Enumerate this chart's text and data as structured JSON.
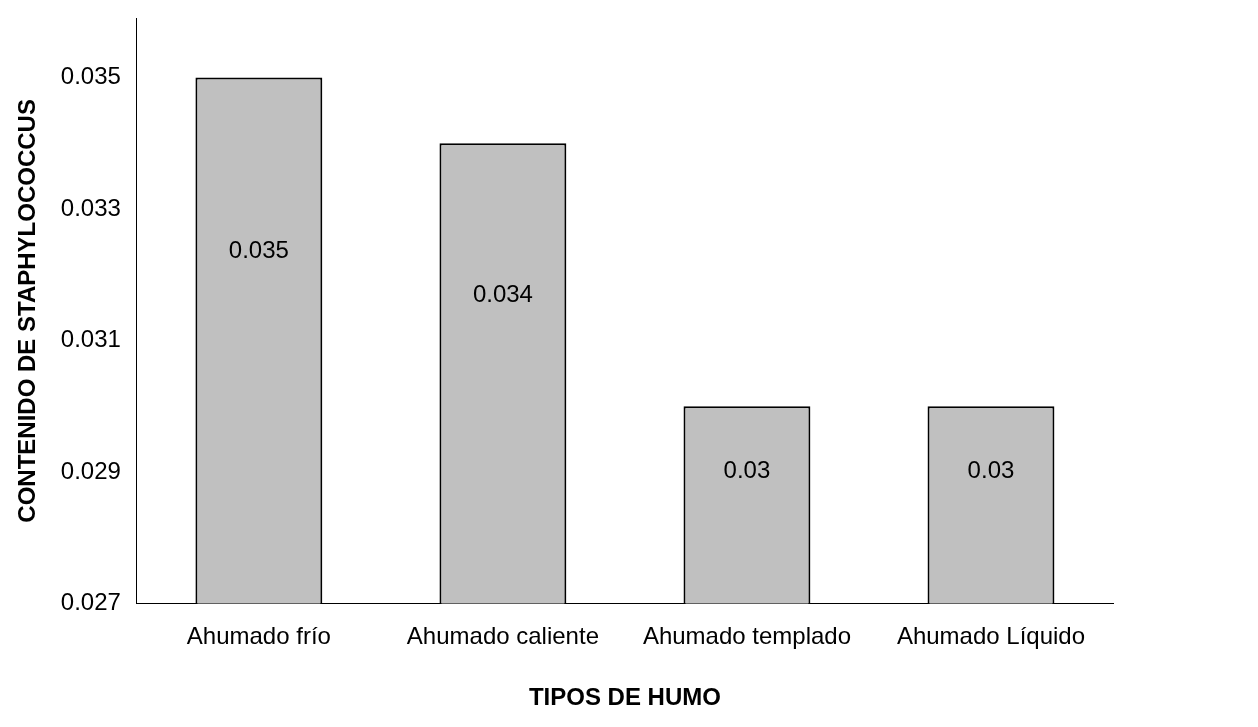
{
  "chart_data": {
    "type": "bar",
    "xlabel": "TIPOS DE HUMO",
    "ylabel": "CONTENIDO DE STAPHYLOCOCCUS",
    "categories": [
      "Ahumado frío",
      "Ahumado caliente",
      "Ahumado templado",
      "Ahumado Líquido"
    ],
    "values": [
      0.035,
      0.034,
      0.03,
      0.03
    ],
    "color": "#c0c0c0",
    "data_labels": true,
    "ylim": [
      0.027,
      0.0359
    ],
    "yticks": [
      0.027,
      0.029,
      0.031,
      0.033,
      0.035
    ],
    "grid": false,
    "legend": false
  }
}
